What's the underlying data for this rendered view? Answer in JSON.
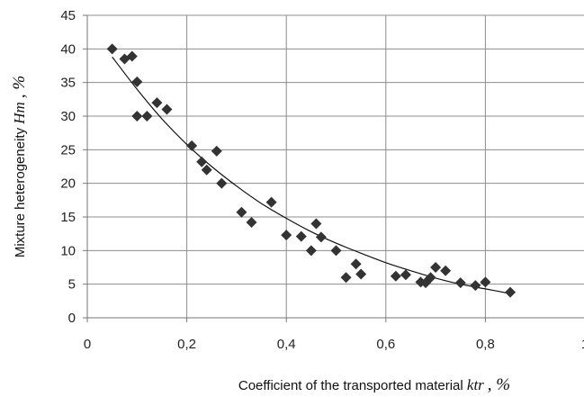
{
  "chart_data": {
    "type": "scatter",
    "xlim": [
      0,
      1
    ],
    "ylim": [
      0,
      45
    ],
    "x_ticks": [
      "0",
      "0,2",
      "0,4",
      "0,6",
      "0,8",
      "1"
    ],
    "y_ticks": [
      "0",
      "5",
      "10",
      "15",
      "20",
      "25",
      "30",
      "35",
      "40",
      "45"
    ],
    "grid": true,
    "xlabel": {
      "text": "Coefficient of the transported material ",
      "symbol": "k",
      "subscript": "tr",
      "unit": ", %"
    },
    "ylabel": {
      "text": "Mixture heterogeneity ",
      "symbol": "H",
      "subscript": "m",
      "unit": ", %"
    },
    "marker": "diamond",
    "marker_color": "#333333",
    "trend_color": "#111111",
    "points": [
      [
        0.05,
        40.0
      ],
      [
        0.075,
        38.5
      ],
      [
        0.09,
        38.9
      ],
      [
        0.1,
        35.1
      ],
      [
        0.1,
        30.0
      ],
      [
        0.12,
        30.0
      ],
      [
        0.14,
        32.0
      ],
      [
        0.16,
        31.0
      ],
      [
        0.21,
        25.6
      ],
      [
        0.23,
        23.2
      ],
      [
        0.24,
        22.0
      ],
      [
        0.26,
        24.8
      ],
      [
        0.27,
        20.0
      ],
      [
        0.31,
        15.7
      ],
      [
        0.33,
        14.2
      ],
      [
        0.37,
        17.2
      ],
      [
        0.4,
        12.3
      ],
      [
        0.43,
        12.1
      ],
      [
        0.45,
        10.0
      ],
      [
        0.46,
        14.0
      ],
      [
        0.47,
        12.0
      ],
      [
        0.5,
        10.0
      ],
      [
        0.52,
        6.0
      ],
      [
        0.54,
        8.0
      ],
      [
        0.55,
        6.5
      ],
      [
        0.62,
        6.2
      ],
      [
        0.64,
        6.4
      ],
      [
        0.67,
        5.3
      ],
      [
        0.68,
        5.2
      ],
      [
        0.69,
        6.0
      ],
      [
        0.7,
        7.5
      ],
      [
        0.72,
        7.0
      ],
      [
        0.75,
        5.2
      ],
      [
        0.78,
        4.8
      ],
      [
        0.8,
        5.3
      ],
      [
        0.85,
        3.8
      ]
    ],
    "trendline": {
      "x": [
        0.05,
        0.1,
        0.15,
        0.2,
        0.25,
        0.3,
        0.35,
        0.4,
        0.45,
        0.5,
        0.55,
        0.6,
        0.65,
        0.7,
        0.75,
        0.8,
        0.85
      ],
      "y": [
        38.8,
        34.0,
        29.6,
        25.8,
        22.5,
        19.6,
        17.0,
        14.8,
        12.8,
        11.1,
        9.6,
        8.2,
        7.0,
        5.9,
        5.0,
        4.3,
        3.6
      ]
    }
  }
}
